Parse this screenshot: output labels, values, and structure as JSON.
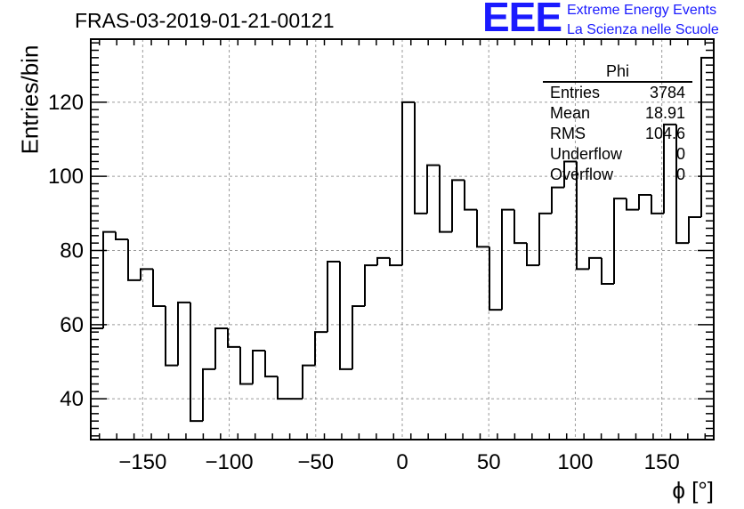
{
  "title": "FRAS-03-2019-01-21-00121",
  "logo": {
    "mark": "EEE",
    "line1": "Extreme Energy Events",
    "line2": "La Scienza nelle Scuole"
  },
  "colors": {
    "histogram": "#000000",
    "grid": "#9a9a9a",
    "logo": "#1a1aff"
  },
  "stats": {
    "title": "Phi",
    "rows": [
      {
        "label": "Entries",
        "value": "3784"
      },
      {
        "label": "Mean",
        "value": "18.91"
      },
      {
        "label": "RMS",
        "value": "104.6"
      },
      {
        "label": "Underflow",
        "value": "0"
      },
      {
        "label": "Overflow",
        "value": "0"
      }
    ]
  },
  "chart_data": {
    "type": "histogram",
    "title": "FRAS-03-2019-01-21-00121",
    "xlabel": "ϕ [°]",
    "ylabel": "Entries/bin",
    "xlim": [
      -180,
      180
    ],
    "ylim": [
      29,
      137
    ],
    "xticks": [
      -150,
      -100,
      -50,
      0,
      50,
      100,
      150
    ],
    "yticks": [
      40,
      60,
      80,
      100,
      120
    ],
    "grid": true,
    "bin_width": 7.2,
    "bin_edges_start": -180,
    "values": [
      59,
      85,
      83,
      72,
      75,
      65,
      49,
      66,
      34,
      48,
      59,
      54,
      44,
      53,
      46,
      40,
      40,
      49,
      58,
      77,
      48,
      65,
      76,
      78,
      76,
      120,
      90,
      103,
      85,
      99,
      91,
      81,
      64,
      91,
      82,
      76,
      90,
      97,
      104,
      75,
      78,
      71,
      94,
      91,
      95,
      90,
      114,
      82,
      89,
      132
    ]
  }
}
